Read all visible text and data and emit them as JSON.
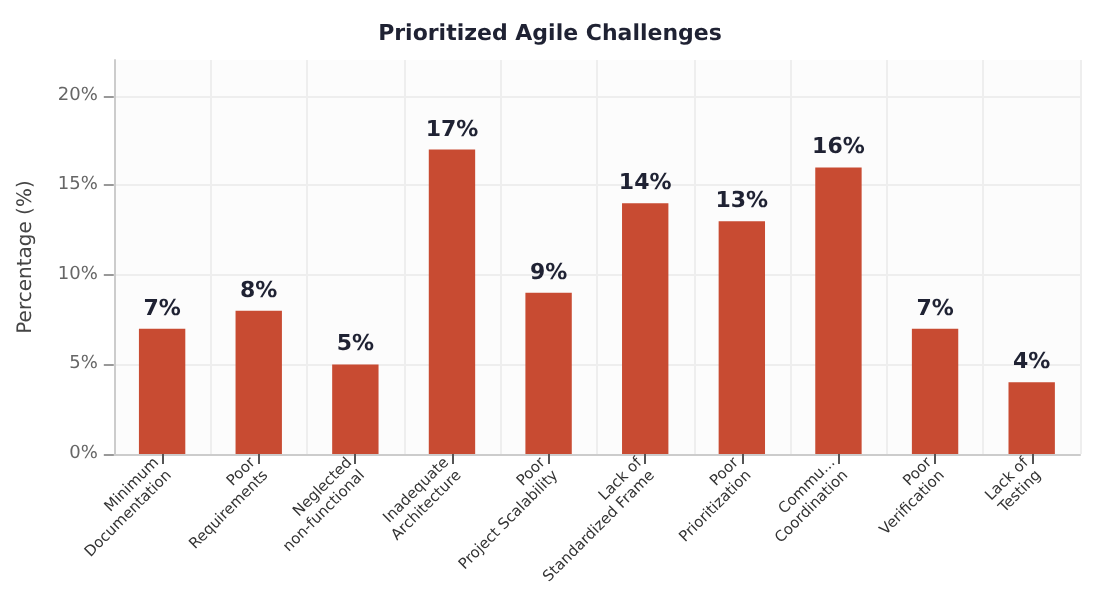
{
  "chart_data": {
    "type": "bar",
    "title": "Prioritized Agile Challenges",
    "ylabel": "Percentage (%)",
    "categories": [
      "Minimum\nDocumentation",
      "Poor\nRequirements",
      "Neglected\nnon-functional",
      "Inadequate\nArchitecture",
      "Poor\nProject Scalability",
      "Lack of\nStandardized Frame",
      "Poor\nPrioritization",
      "Commu...\nCoordination",
      "Poor\nVerification",
      "Lack of\nTesting"
    ],
    "values": [
      7,
      8,
      5,
      17,
      9,
      14,
      13,
      16,
      7,
      4
    ],
    "value_labels": [
      "7%",
      "8%",
      "5%",
      "17%",
      "9%",
      "14%",
      "13%",
      "16%",
      "7%",
      "4%"
    ],
    "color": "#c84b32",
    "ylim": [
      0,
      22
    ],
    "yticks": [
      {
        "value": 0,
        "label": "0%"
      },
      {
        "value": 5,
        "label": "5%"
      },
      {
        "value": 10,
        "label": "10%"
      },
      {
        "value": 15,
        "label": "15%"
      },
      {
        "value": 20,
        "label": "20%"
      }
    ],
    "grid": true
  }
}
